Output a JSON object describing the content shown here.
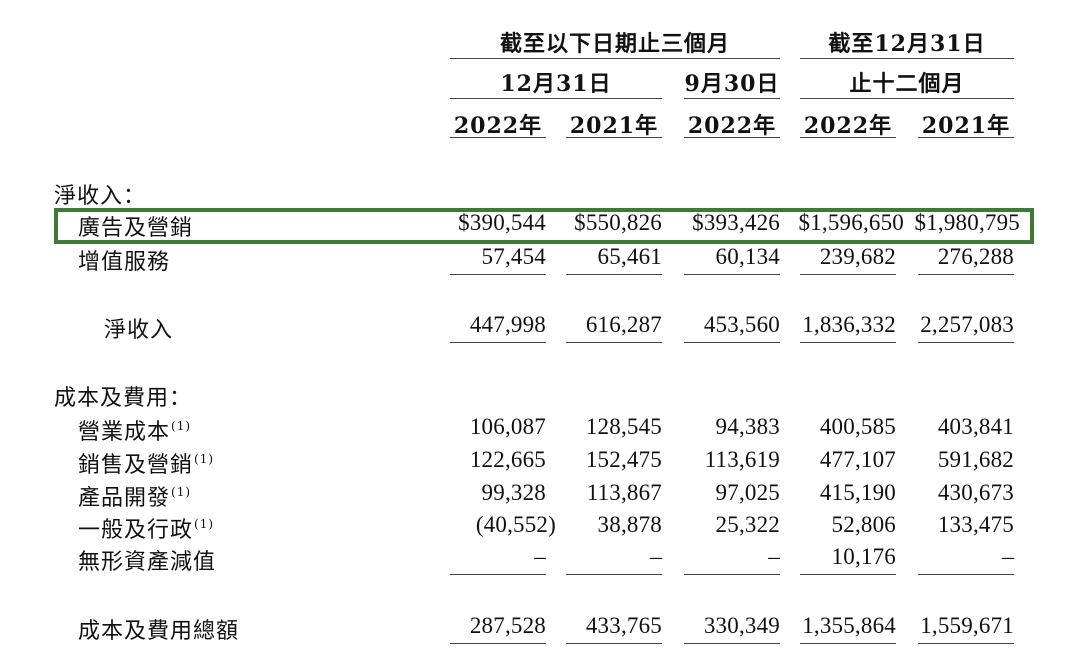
{
  "header": {
    "group_three_months": "截至以下日期止三個月",
    "group_twelve_months": "截至12月31日",
    "sub_dec31": "12月31日",
    "sub_sep30": "9月30日",
    "sub_twelve": "止十二個月",
    "years": [
      "2022年",
      "2021年",
      "2022年",
      "2022年",
      "2021年"
    ]
  },
  "sections": {
    "net_revenue_title": "淨收入：",
    "costs_title": "成本及費用："
  },
  "rows": {
    "advertising": {
      "label": "廣告及營銷",
      "values": [
        "$390,544",
        "$550,826",
        "$393,426",
        "$1,596,650",
        "$1,980,795"
      ]
    },
    "vas": {
      "label": "增值服務",
      "values": [
        "57,454",
        "65,461",
        "60,134",
        "239,682",
        "276,288"
      ]
    },
    "net_revenue": {
      "label": "淨收入",
      "values": [
        "447,998",
        "616,287",
        "453,560",
        "1,836,332",
        "2,257,083"
      ]
    },
    "cost_of_revenue": {
      "label": "營業成本",
      "note": "(1)",
      "values": [
        "106,087",
        "128,545",
        "94,383",
        "400,585",
        "403,841"
      ]
    },
    "sales_marketing": {
      "label": "銷售及營銷",
      "note": "(1)",
      "values": [
        "122,665",
        "152,475",
        "113,619",
        "477,107",
        "591,682"
      ]
    },
    "product_dev": {
      "label": "產品開發",
      "note": "(1)",
      "values": [
        "99,328",
        "113,867",
        "97,025",
        "415,190",
        "430,673"
      ]
    },
    "general_admin": {
      "label": "一般及行政",
      "note": "(1)",
      "values": [
        "(40,552)",
        "38,878",
        "25,322",
        "52,806",
        "133,475"
      ]
    },
    "intangible_impairment": {
      "label": "無形資產減值",
      "values": [
        "–",
        "–",
        "–",
        "10,176",
        "–"
      ]
    },
    "total_costs": {
      "label": "成本及費用總額",
      "values": [
        "287,528",
        "433,765",
        "330,349",
        "1,355,864",
        "1,559,671"
      ]
    }
  },
  "colors": {
    "highlight_border": "#3d7a3a",
    "text": "#111111"
  }
}
